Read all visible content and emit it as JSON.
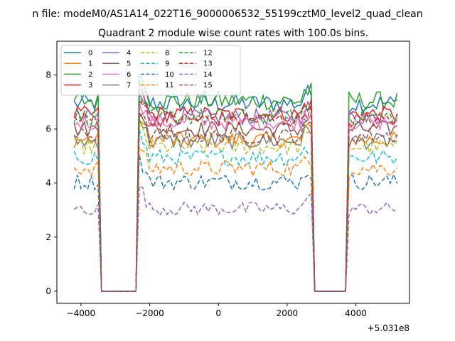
{
  "chart_data": {
    "type": "line",
    "suptitle": "n file: modeM0/AS1A14_022T16_9000006532_55199cztM0_level2_quad_clean",
    "title": "Quadrant 2 module wise count rates with 100.0s bins.",
    "xlabel": "",
    "ylabel": "",
    "x_offset_label": "+5.031e8",
    "xlim": [
      -4700,
      5560
    ],
    "ylim": [
      -0.45,
      9.25
    ],
    "xticks": [
      -4000,
      -2000,
      0,
      2000,
      4000
    ],
    "xtick_labels": [
      "−4000",
      "−2000",
      "0",
      "2000",
      "4000"
    ],
    "yticks": [
      0,
      2,
      4,
      6,
      8
    ],
    "ytick_labels": [
      "0",
      "2",
      "4",
      "6",
      "8"
    ],
    "legend_position": "upper-left",
    "segments": [
      {
        "x_start": -4200,
        "x_end": -3500
      },
      {
        "x_start": -2300,
        "x_end": 2700
      },
      {
        "x_start": 3800,
        "x_end": 5200
      }
    ],
    "gap_ranges": [
      [
        -3400,
        -2400
      ],
      [
        2800,
        3700
      ]
    ],
    "series": [
      {
        "name": "0",
        "color": "#1f77b4",
        "dash": "solid",
        "level": 6.95,
        "amp": 0.35
      },
      {
        "name": "1",
        "color": "#ff7f0e",
        "dash": "solid",
        "level": 5.6,
        "amp": 0.3
      },
      {
        "name": "2",
        "color": "#2ca02c",
        "dash": "solid",
        "level": 7.05,
        "amp": 0.35
      },
      {
        "name": "3",
        "color": "#d62728",
        "dash": "solid",
        "level": 6.55,
        "amp": 0.3
      },
      {
        "name": "4",
        "color": "#9467bd",
        "dash": "solid",
        "level": 6.45,
        "amp": 0.3
      },
      {
        "name": "5",
        "color": "#8c564b",
        "dash": "solid",
        "level": 6.0,
        "amp": 0.3
      },
      {
        "name": "6",
        "color": "#e377c2",
        "dash": "solid",
        "level": 6.25,
        "amp": 0.3
      },
      {
        "name": "7",
        "color": "#7f7f7f",
        "dash": "solid",
        "level": 5.55,
        "amp": 0.3
      },
      {
        "name": "8",
        "color": "#bcbd22",
        "dash": "dashed",
        "level": 5.35,
        "amp": 0.3
      },
      {
        "name": "9",
        "color": "#17becf",
        "dash": "dashed",
        "level": 4.95,
        "amp": 0.3
      },
      {
        "name": "10",
        "color": "#1f77b4",
        "dash": "dashed",
        "level": 4.05,
        "amp": 0.3
      },
      {
        "name": "11",
        "color": "#ff7f0e",
        "dash": "dashed",
        "level": 4.55,
        "amp": 0.3
      },
      {
        "name": "12",
        "color": "#2ca02c",
        "dash": "dashed",
        "level": 6.45,
        "amp": 0.3
      },
      {
        "name": "13",
        "color": "#d62728",
        "dash": "dashed",
        "level": 6.35,
        "amp": 0.3
      },
      {
        "name": "14",
        "color": "#9467bd",
        "dash": "dashed",
        "level": 3.05,
        "amp": 0.25
      },
      {
        "name": "15",
        "color": "#8c564b",
        "dash": "dashed",
        "level": 5.75,
        "amp": 0.3
      }
    ]
  }
}
